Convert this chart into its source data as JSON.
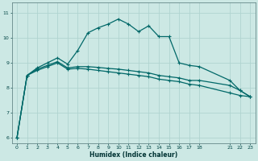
{
  "xlabel": "Humidex (Indice chaleur)",
  "bg_color": "#cce8e4",
  "grid_color": "#b0d4d0",
  "line_color": "#006868",
  "ylim": [
    5.8,
    11.4
  ],
  "xlim": [
    -0.5,
    23.5
  ],
  "yticks": [
    6,
    7,
    8,
    9,
    10,
    11
  ],
  "xticks": [
    0,
    1,
    2,
    3,
    4,
    5,
    6,
    7,
    8,
    9,
    10,
    11,
    12,
    13,
    14,
    15,
    16,
    17,
    18,
    21,
    22,
    23
  ],
  "line1_x": [
    0,
    1,
    2,
    3,
    4,
    5,
    6,
    7,
    8,
    9,
    10,
    11,
    12,
    13,
    14,
    15,
    16,
    17,
    18,
    21,
    22,
    23
  ],
  "line1_y": [
    6.0,
    8.5,
    8.8,
    9.0,
    9.2,
    8.95,
    9.5,
    10.2,
    10.4,
    10.55,
    10.75,
    10.55,
    10.25,
    10.48,
    10.05,
    10.05,
    9.0,
    8.9,
    8.85,
    8.3,
    7.9,
    7.65
  ],
  "line2_x": [
    0,
    1,
    2,
    3,
    4,
    5,
    6,
    7,
    8,
    9,
    10,
    11,
    12,
    13,
    14,
    15,
    16,
    17,
    18,
    21,
    22,
    23
  ],
  "line2_y": [
    6.0,
    8.5,
    8.75,
    8.9,
    9.05,
    8.8,
    8.85,
    8.85,
    8.82,
    8.78,
    8.75,
    8.7,
    8.65,
    8.6,
    8.5,
    8.45,
    8.4,
    8.3,
    8.3,
    8.1,
    7.9,
    7.65
  ],
  "line3_x": [
    0,
    1,
    2,
    3,
    4,
    5,
    6,
    7,
    8,
    9,
    10,
    11,
    12,
    13,
    14,
    15,
    16,
    17,
    18,
    21,
    22,
    23
  ],
  "line3_y": [
    6.0,
    8.5,
    8.7,
    8.85,
    9.0,
    8.75,
    8.78,
    8.75,
    8.7,
    8.65,
    8.6,
    8.55,
    8.5,
    8.45,
    8.35,
    8.3,
    8.25,
    8.15,
    8.1,
    7.8,
    7.7,
    7.65
  ]
}
